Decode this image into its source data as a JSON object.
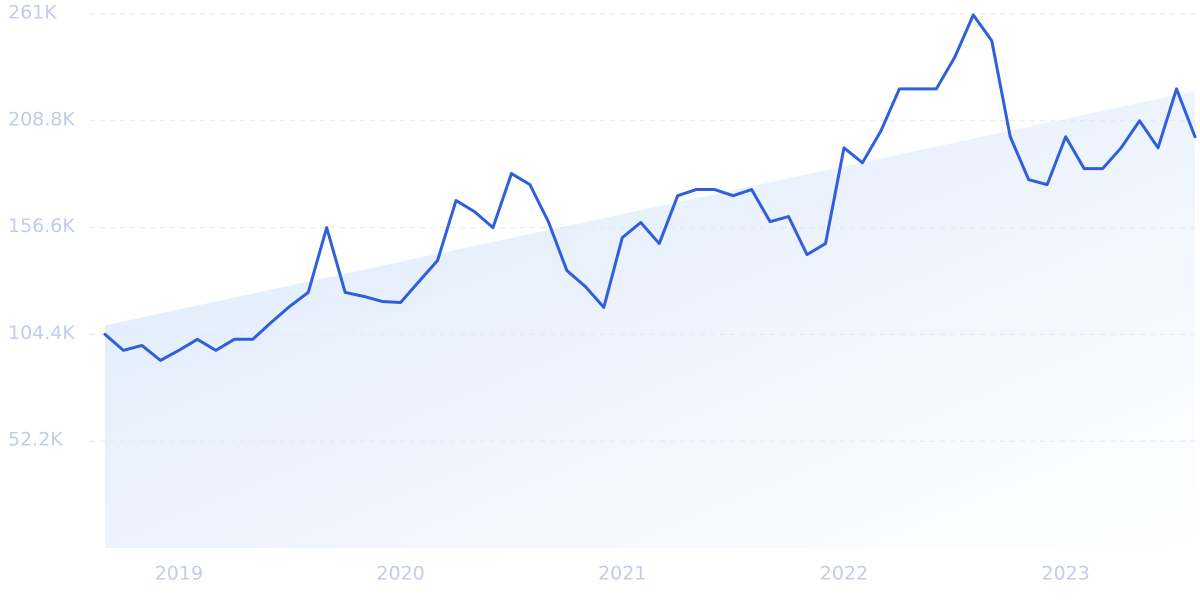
{
  "chart_data": {
    "type": "line",
    "categories": [
      null,
      null,
      null,
      null,
      "2019",
      null,
      null,
      null,
      null,
      null,
      null,
      null,
      null,
      null,
      null,
      null,
      "2020",
      null,
      null,
      null,
      null,
      null,
      null,
      null,
      null,
      null,
      null,
      null,
      "2021",
      null,
      null,
      null,
      null,
      null,
      null,
      null,
      null,
      null,
      null,
      null,
      "2022",
      null,
      null,
      null,
      null,
      null,
      null,
      null,
      null,
      null,
      null,
      null,
      "2023",
      null,
      null,
      null,
      null,
      null,
      null,
      null
    ],
    "values": [
      104400,
      96600,
      99000,
      91700,
      96600,
      102000,
      96600,
      102000,
      102000,
      110300,
      118100,
      124900,
      156600,
      124900,
      123000,
      120500,
      120000,
      130300,
      140500,
      169800,
      164400,
      156600,
      183000,
      177600,
      159500,
      135600,
      127800,
      117600,
      151700,
      159100,
      148800,
      172200,
      175200,
      175200,
      172200,
      175200,
      159500,
      162000,
      143400,
      148800,
      195600,
      188300,
      203900,
      224400,
      224400,
      224400,
      240000,
      260500,
      247900,
      201000,
      180000,
      177600,
      201000,
      185400,
      185400,
      195600,
      208800,
      195600,
      224400,
      201000
    ],
    "color": "#2f5fdc",
    "trend": [
      108800,
      223400
    ],
    "trend_color": "#dbe8fb",
    "ylim": [
      0,
      261000
    ],
    "yticks": [
      {
        "value": 52200,
        "label": "52.2K"
      },
      {
        "value": 104400,
        "label": "104.4K"
      },
      {
        "value": 156600,
        "label": "156.6K"
      },
      {
        "value": 208800,
        "label": "208.8K"
      },
      {
        "value": 261000,
        "label": "261K"
      }
    ],
    "grid": true
  }
}
